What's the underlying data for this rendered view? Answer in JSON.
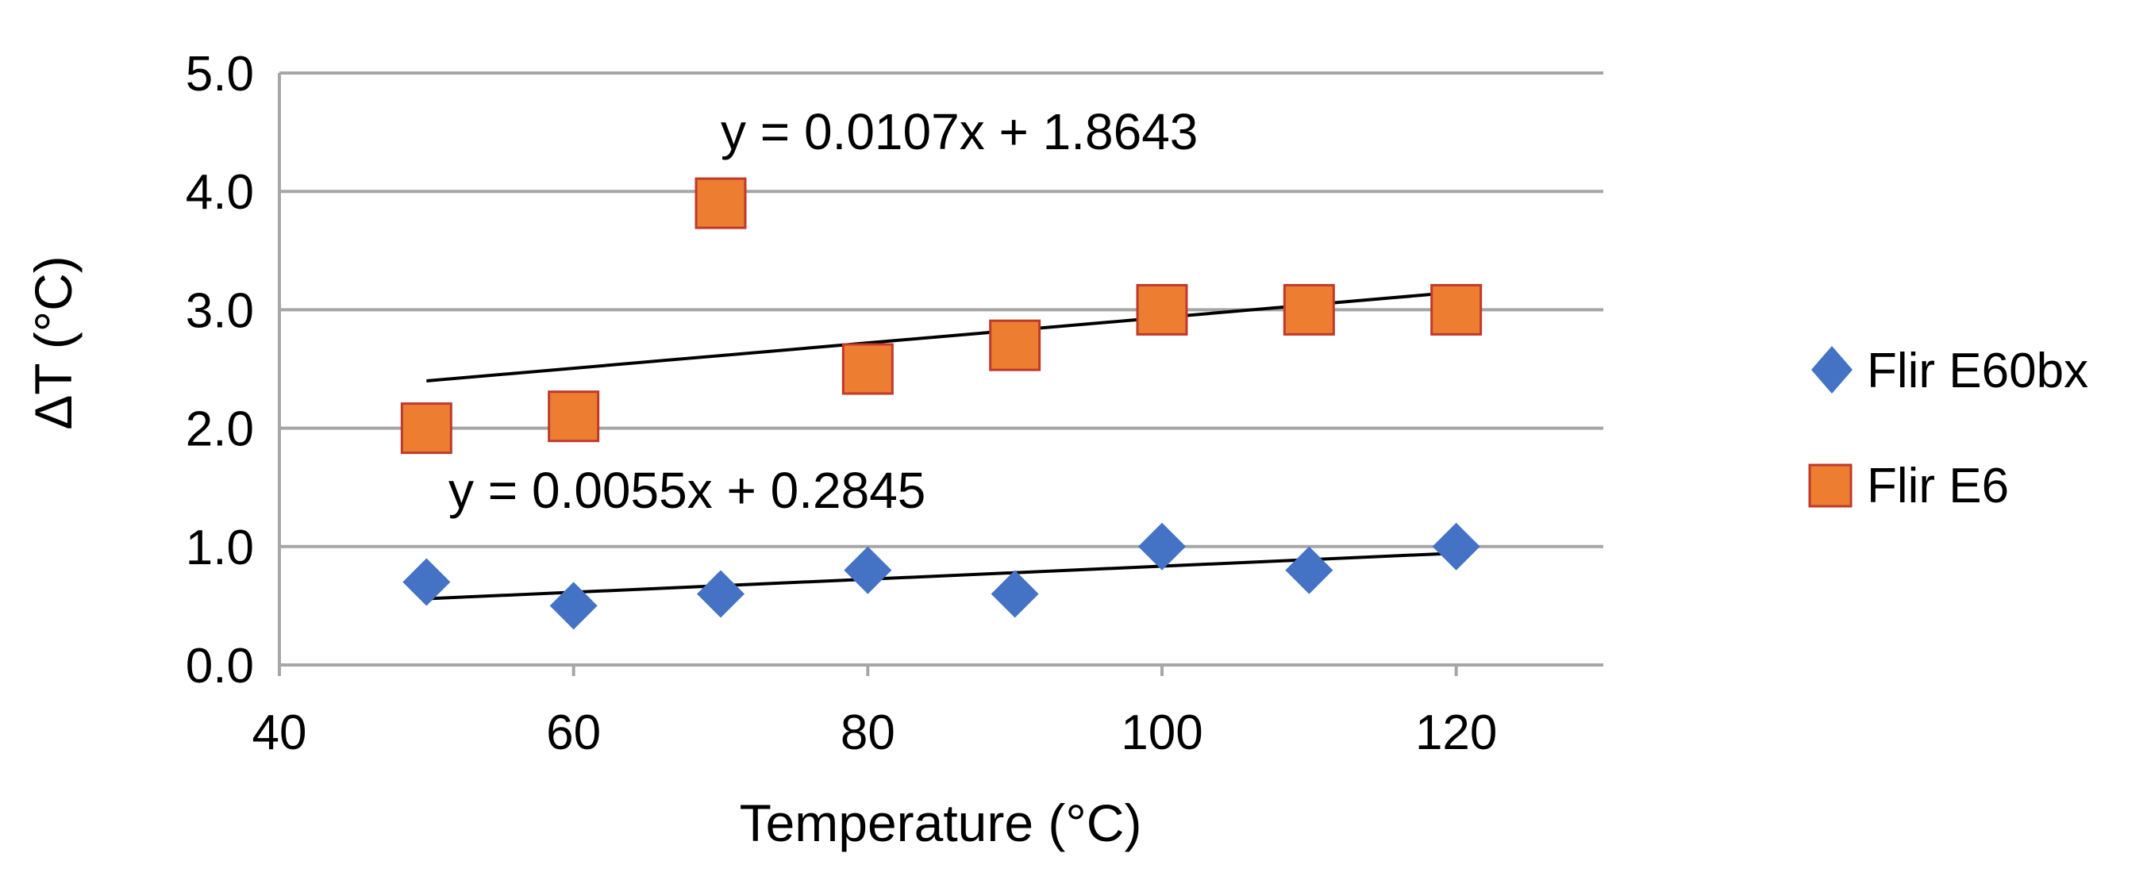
{
  "chart_data": {
    "type": "scatter",
    "xlabel": "Temperature (°C)",
    "ylabel": "ΔT (°C)",
    "xlim": [
      40,
      130
    ],
    "ylim": [
      0,
      5
    ],
    "xticks": [
      40,
      60,
      80,
      100,
      120
    ],
    "yticks": [
      0,
      1,
      2,
      3,
      4,
      5
    ],
    "ytick_labels": [
      "0.0",
      "1.0",
      "2.0",
      "3.0",
      "4.0",
      "5.0"
    ],
    "grid": "horizontal",
    "legend_position": "right",
    "series": [
      {
        "name": "Flir E60bx",
        "marker": "diamond",
        "color": "#4472C4",
        "x": [
          50,
          60,
          70,
          80,
          90,
          100,
          110,
          120
        ],
        "y": [
          0.7,
          0.5,
          0.6,
          0.8,
          0.6,
          1.0,
          0.8,
          1.0
        ],
        "trendline": {
          "slope": 0.0055,
          "intercept": 0.2845,
          "x_range": [
            50,
            120
          ],
          "label": "y = 0.0055x + 0.2845"
        }
      },
      {
        "name": "Flir E6",
        "marker": "square",
        "color": "#ED7D31",
        "edge_color": "#C0392B",
        "x": [
          50,
          60,
          70,
          80,
          90,
          100,
          110,
          120
        ],
        "y": [
          2.0,
          2.1,
          3.9,
          2.5,
          2.7,
          3.0,
          3.0,
          3.0
        ],
        "trendline": {
          "slope": 0.0107,
          "intercept": 1.8643,
          "x_range": [
            50,
            120
          ],
          "label": "y = 0.0107x + 1.8643"
        }
      }
    ]
  }
}
